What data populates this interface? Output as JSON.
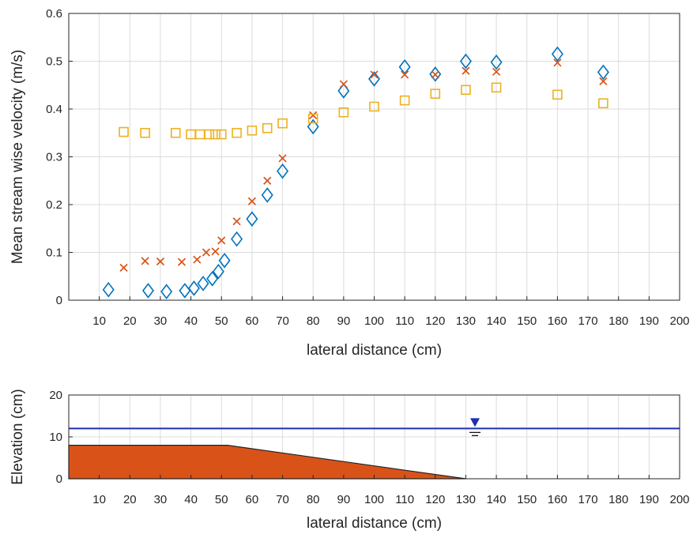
{
  "chart_data": [
    {
      "type": "scatter",
      "title": "",
      "xlabel": "lateral distance (cm)",
      "ylabel": "Mean stream wise velocity (m/s)",
      "xlim": [
        0,
        200
      ],
      "ylim": [
        0,
        0.6
      ],
      "grid": true,
      "x_ticks": [
        "10",
        "20",
        "30",
        "40",
        "50",
        "60",
        "70",
        "80",
        "90",
        "100",
        "110",
        "120",
        "130",
        "140",
        "150",
        "160",
        "170",
        "180",
        "190",
        "200"
      ],
      "y_ticks": [
        "0",
        "0.1",
        "0.2",
        "0.3",
        "0.4",
        "0.5",
        "0.6"
      ],
      "series": [
        {
          "marker": "diamond",
          "color": "#0072BD",
          "points": [
            [
              13,
              0.022
            ],
            [
              26,
              0.02
            ],
            [
              32,
              0.018
            ],
            [
              38,
              0.02
            ],
            [
              41,
              0.025
            ],
            [
              44,
              0.035
            ],
            [
              47,
              0.045
            ],
            [
              49,
              0.06
            ],
            [
              51,
              0.083
            ],
            [
              55,
              0.128
            ],
            [
              60,
              0.17
            ],
            [
              65,
              0.22
            ],
            [
              70,
              0.27
            ],
            [
              80,
              0.363
            ],
            [
              90,
              0.438
            ],
            [
              100,
              0.463
            ],
            [
              110,
              0.488
            ],
            [
              120,
              0.473
            ],
            [
              130,
              0.5
            ],
            [
              140,
              0.498
            ],
            [
              160,
              0.515
            ],
            [
              175,
              0.477
            ]
          ]
        },
        {
          "marker": "x",
          "color": "#D95319",
          "points": [
            [
              18,
              0.068
            ],
            [
              25,
              0.082
            ],
            [
              30,
              0.081
            ],
            [
              37,
              0.08
            ],
            [
              42,
              0.085
            ],
            [
              45,
              0.1
            ],
            [
              48,
              0.102
            ],
            [
              50,
              0.125
            ],
            [
              55,
              0.165
            ],
            [
              60,
              0.207
            ],
            [
              65,
              0.25
            ],
            [
              70,
              0.297
            ],
            [
              80,
              0.387
            ],
            [
              90,
              0.452
            ],
            [
              100,
              0.472
            ],
            [
              110,
              0.472
            ],
            [
              120,
              0.472
            ],
            [
              130,
              0.48
            ],
            [
              140,
              0.478
            ],
            [
              160,
              0.497
            ],
            [
              175,
              0.458
            ]
          ]
        },
        {
          "marker": "square",
          "color": "#EDB120",
          "points": [
            [
              18,
              0.352
            ],
            [
              25,
              0.35
            ],
            [
              35,
              0.35
            ],
            [
              40,
              0.347
            ],
            [
              43,
              0.347
            ],
            [
              46,
              0.347
            ],
            [
              48,
              0.347
            ],
            [
              50,
              0.347
            ],
            [
              55,
              0.35
            ],
            [
              60,
              0.355
            ],
            [
              65,
              0.36
            ],
            [
              70,
              0.37
            ],
            [
              80,
              0.38
            ],
            [
              90,
              0.393
            ],
            [
              100,
              0.405
            ],
            [
              110,
              0.418
            ],
            [
              120,
              0.432
            ],
            [
              130,
              0.44
            ],
            [
              140,
              0.445
            ],
            [
              160,
              0.43
            ],
            [
              175,
              0.412
            ]
          ]
        }
      ]
    },
    {
      "type": "area",
      "title": "",
      "xlabel": "lateral distance (cm)",
      "ylabel": "Elevation (cm)",
      "xlim": [
        0,
        200
      ],
      "ylim": [
        0,
        20
      ],
      "grid": true,
      "x_ticks": [
        "10",
        "20",
        "30",
        "40",
        "50",
        "60",
        "70",
        "80",
        "90",
        "100",
        "110",
        "120",
        "130",
        "140",
        "150",
        "160",
        "170",
        "180",
        "190",
        "200"
      ],
      "y_ticks": [
        "0",
        "10",
        "20"
      ],
      "bed_profile": {
        "color": "#D95319",
        "points": [
          [
            0,
            0
          ],
          [
            0,
            8
          ],
          [
            52,
            8
          ],
          [
            130,
            0
          ]
        ]
      },
      "water_surface": {
        "color": "#1f2fb0",
        "level": 12,
        "marker_x": 133
      }
    }
  ]
}
